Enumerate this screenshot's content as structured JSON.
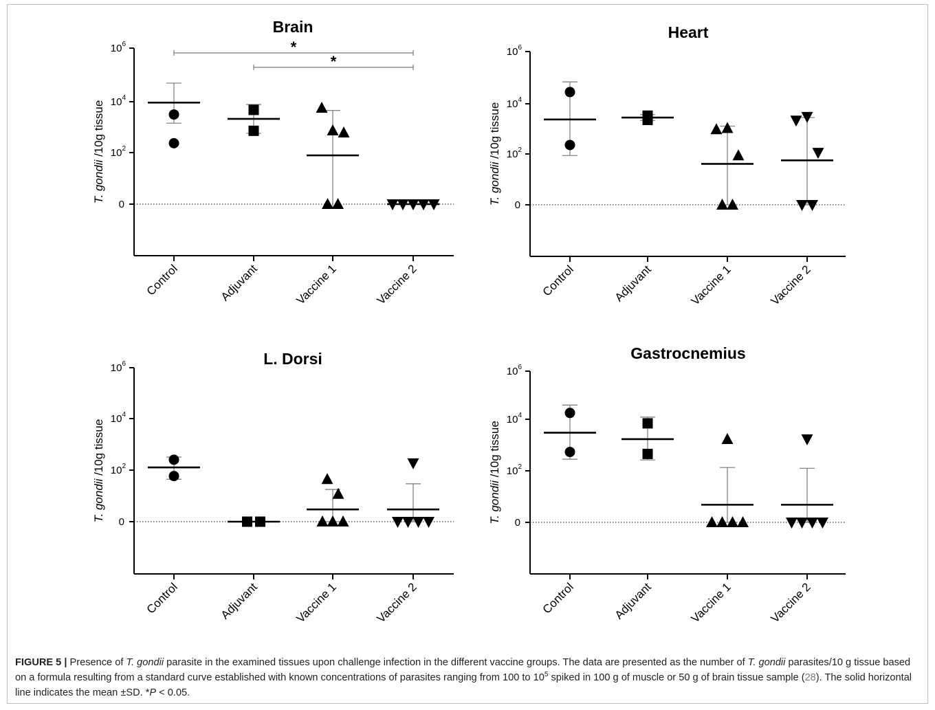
{
  "figure": {
    "caption": {
      "label": "FIGURE 5 |",
      "text_a": " Presence of ",
      "italic_a": "T. gondii",
      "text_b": " parasite in the examined tissues upon challenge infection in the different vaccine groups. The data are presented as the number of ",
      "italic_b": "T. gondii",
      "text_c": " parasites/10 g tissue based on a formula resulting from a standard curve established with known concentrations of parasites ranging from 100 to 10",
      "sup_c": "5",
      "text_d": " spiked in 100 g of muscle or 50 g of brain tissue sample (",
      "ref": "28",
      "text_e": "). The solid horizontal line indicates the mean ±SD. *",
      "italic_e": "P",
      "text_f": " < 0.05."
    }
  },
  "chart_data": [
    {
      "type": "scatter",
      "title": "Brain",
      "ylabel": "T. gondii /10g tissue",
      "ylabel_italic": "T. gondii",
      "ylabel_rest": " /10g tissue",
      "y_scale": "log (with 0 baseline)",
      "yticks": [
        "0",
        "10^2",
        "10^4",
        "10^6"
      ],
      "categories": [
        "Control",
        "Adjuvant",
        "Vaccine 1",
        "Vaccine 2"
      ],
      "markers": [
        "circle",
        "square",
        "triangle-up",
        "triangle-down"
      ],
      "points": [
        [
          2800,
          220
        ],
        [
          4200,
          660
        ],
        [
          5000,
          680,
          560,
          0,
          0
        ],
        [
          0,
          0,
          0,
          0,
          0
        ]
      ],
      "mean": [
        8000,
        1900,
        75,
        0
      ],
      "sd_upper": [
        45000,
        6800,
        4000,
        0
      ],
      "sd_lower": [
        1300,
        530,
        0.7,
        0
      ],
      "significance": [
        {
          "from": "Control",
          "to": "Vaccine 2",
          "label": "*"
        },
        {
          "from": "Adjuvant",
          "to": "Vaccine 2",
          "label": "*"
        }
      ]
    },
    {
      "type": "scatter",
      "title": "Heart",
      "ylabel": "T. gondii /10g tissue",
      "ylabel_italic": "T. gondii",
      "ylabel_rest": " /10g tissue",
      "y_scale": "log (with 0 baseline)",
      "yticks": [
        "0",
        "10^2",
        "10^4",
        "10^6"
      ],
      "categories": [
        "Control",
        "Adjuvant",
        "Vaccine 1",
        "Vaccine 2"
      ],
      "markers": [
        "circle",
        "square",
        "triangle-up",
        "triangle-down"
      ],
      "points": [
        [
          26000,
          220
        ],
        [
          2100,
          3100
        ],
        [
          900,
          1000,
          85,
          0,
          0
        ],
        [
          2000,
          2800,
          110,
          0,
          0
        ]
      ],
      "mean": [
        2200,
        2600,
        40,
        55
      ],
      "sd_upper": [
        65000,
        3400,
        1200,
        2600
      ],
      "sd_lower": [
        85,
        2000,
        0,
        0
      ],
      "significance": []
    },
    {
      "type": "scatter",
      "title": "L. Dorsi",
      "ylabel": "T. gondii /10g tissue",
      "ylabel_italic": "T. gondii",
      "ylabel_rest": " /10g tissue",
      "y_scale": "log (with 0 baseline)",
      "yticks": [
        "0",
        "10^2",
        "10^4",
        "10^6"
      ],
      "categories": [
        "Control",
        "Adjuvant",
        "Vaccine 1",
        "Vaccine 2"
      ],
      "markers": [
        "circle",
        "square",
        "triangle-up",
        "triangle-down"
      ],
      "points": [
        [
          260,
          60
        ],
        [
          0,
          0
        ],
        [
          45,
          12,
          0,
          0,
          0
        ],
        [
          190,
          0,
          0,
          0,
          0
        ]
      ],
      "mean": [
        130,
        0,
        3,
        3
      ],
      "sd_upper": [
        330,
        0,
        18,
        30
      ],
      "sd_lower": [
        45,
        0,
        0,
        0
      ],
      "significance": []
    },
    {
      "type": "scatter",
      "title": "Gastrocnemius",
      "ylabel": "T. gondii /10g tissue",
      "ylabel_italic": "T. gondii",
      "ylabel_rest": " /10g tissue",
      "y_scale": "log (with 0 baseline)",
      "yticks": [
        "0",
        "10^2",
        "10^4",
        "10^6"
      ],
      "categories": [
        "Control",
        "Adjuvant",
        "Vaccine 1",
        "Vaccine 2"
      ],
      "markers": [
        "circle",
        "square",
        "triangle-up",
        "triangle-down"
      ],
      "points": [
        [
          22000,
          620
        ],
        [
          8500,
          520
        ],
        [
          2000,
          0,
          0,
          0,
          0
        ],
        [
          2000,
          0,
          0,
          0,
          0
        ]
      ],
      "mean": [
        3600,
        2000,
        5,
        5
      ],
      "sd_upper": [
        45000,
        15000,
        150,
        140
      ],
      "sd_lower": [
        320,
        300,
        0,
        0
      ],
      "significance": []
    }
  ]
}
